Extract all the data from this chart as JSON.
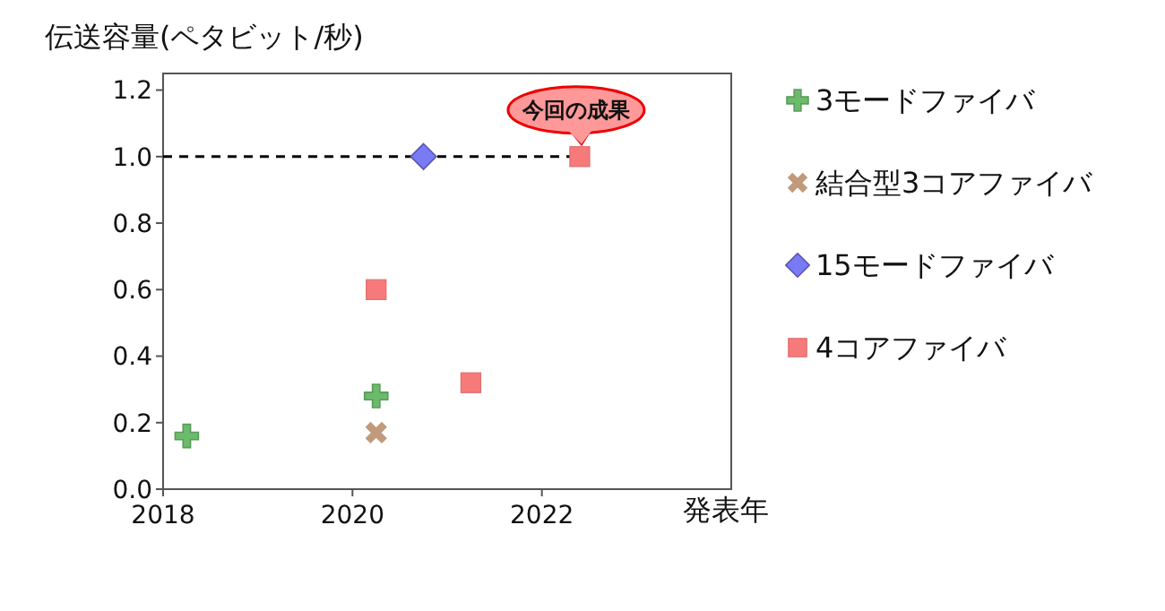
{
  "chart_data": {
    "type": "scatter",
    "ylabel": "伝送容量(ペタビット/秒)",
    "xlabel": "発表年",
    "xlim": [
      2018,
      2024
    ],
    "xticks": [
      2018,
      2020,
      2022
    ],
    "ylim": [
      0,
      1.25
    ],
    "yticks": [
      {
        "value": 0,
        "label": "0.0"
      },
      {
        "value": 0.2,
        "label": "0.2"
      },
      {
        "value": 0.4,
        "label": "0.4"
      },
      {
        "value": 0.6,
        "label": "0.6"
      },
      {
        "value": 0.8,
        "label": "0.8"
      },
      {
        "value": 1.0,
        "label": "1.0"
      },
      {
        "value": 1.2,
        "label": "1.2"
      }
    ],
    "grid": false,
    "legend": "right",
    "series": [
      {
        "name": "3モードファイバ",
        "color": "#6cba6c",
        "marker": "cross",
        "x": [
          2018.25,
          2020.25
        ],
        "values": [
          0.16,
          0.28
        ]
      },
      {
        "name": "結合型3コアファイバ",
        "color": "#c19a7b",
        "marker": "x",
        "x": [
          2020.25
        ],
        "values": [
          0.17
        ]
      },
      {
        "name": "15モードファイバ",
        "color": "#7a7af5",
        "marker": "diamond",
        "x": [
          2020.75
        ],
        "values": [
          1.0
        ]
      },
      {
        "name": "4コアファイバ",
        "color": "#f77a7a",
        "marker": "square",
        "x": [
          2020.25,
          2021.25,
          2022.4
        ],
        "values": [
          0.6,
          0.32,
          1.0
        ]
      }
    ],
    "ref_lines": [
      {
        "axis": "y",
        "value": 1.0,
        "line_style": "dashed",
        "color": "#000000"
      }
    ],
    "annotations": [
      {
        "text": "今回の成果",
        "x": 2022.4,
        "y": 1.0
      }
    ]
  }
}
